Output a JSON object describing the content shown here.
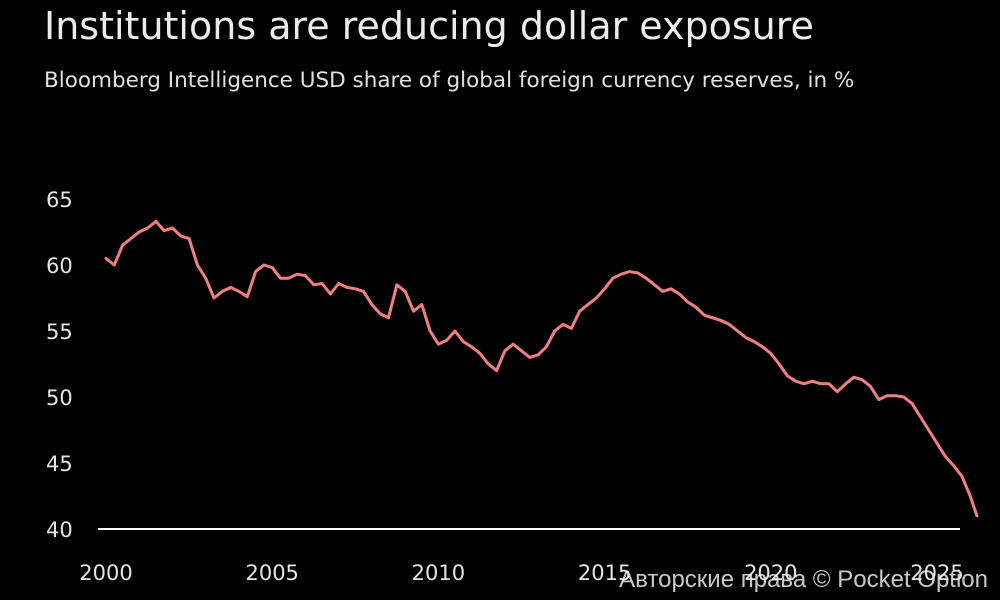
{
  "chart_data": {
    "type": "line",
    "title": "Institutions are reducing dollar exposure",
    "subtitle": "Bloomberg Intelligence USD share of global foreign currency reserves, in %",
    "xlabel": "",
    "ylabel": "",
    "xlim": [
      2000,
      2026.6
    ],
    "ylim": [
      40,
      67
    ],
    "xticks": [
      2000,
      2005,
      2010,
      2015,
      2020,
      2025
    ],
    "yticks": [
      40,
      45,
      50,
      55,
      60,
      65
    ],
    "grid": false,
    "legend": "none",
    "line_color": "#f08080",
    "series": [
      {
        "name": "",
        "x": [
          2000.0,
          2000.25,
          2000.5,
          2000.75,
          2001.0,
          2001.25,
          2001.5,
          2001.75,
          2002.0,
          2002.25,
          2002.5,
          2002.75,
          2003.0,
          2003.25,
          2003.5,
          2003.75,
          2004.0,
          2004.25,
          2004.5,
          2004.75,
          2005.0,
          2005.25,
          2005.5,
          2005.75,
          2006.0,
          2006.25,
          2006.5,
          2006.75,
          2007.0,
          2007.25,
          2007.5,
          2007.75,
          2008.0,
          2008.25,
          2008.5,
          2008.75,
          2009.0,
          2009.25,
          2009.5,
          2009.75,
          2010.0,
          2010.25,
          2010.5,
          2010.75,
          2011.0,
          2011.25,
          2011.5,
          2011.75,
          2012.0,
          2012.25,
          2012.5,
          2012.75,
          2013.0,
          2013.25,
          2013.5,
          2013.75,
          2014.0,
          2014.25,
          2014.5,
          2014.75,
          2015.0,
          2015.25,
          2015.5,
          2015.75,
          2016.0,
          2016.25,
          2016.5,
          2016.75,
          2017.0,
          2017.25,
          2017.5,
          2017.75,
          2018.0,
          2018.25,
          2018.5,
          2018.75,
          2019.0,
          2019.25,
          2019.5,
          2019.75,
          2020.0,
          2020.25,
          2020.5,
          2020.75,
          2021.0,
          2021.25,
          2021.5,
          2021.75,
          2022.0,
          2022.25,
          2022.5,
          2022.75,
          2023.0,
          2023.25,
          2023.5,
          2023.75,
          2024.0,
          2024.25,
          2024.5,
          2024.75,
          2025.0,
          2025.25,
          2025.5,
          2025.75,
          2026.0,
          2026.2
        ],
        "values": [
          60.5,
          60.0,
          61.5,
          62.0,
          62.5,
          62.8,
          63.3,
          62.6,
          62.8,
          62.2,
          62.0,
          60.0,
          59.0,
          57.5,
          58.0,
          58.3,
          58.0,
          57.6,
          59.5,
          60.0,
          59.8,
          59.0,
          59.0,
          59.3,
          59.2,
          58.5,
          58.6,
          57.8,
          58.6,
          58.3,
          58.2,
          58.0,
          57.0,
          56.3,
          56.0,
          58.5,
          58.0,
          56.5,
          57.0,
          55.0,
          54.0,
          54.3,
          55.0,
          54.2,
          53.8,
          53.3,
          52.5,
          52.0,
          53.5,
          54.0,
          53.5,
          53.0,
          53.2,
          53.8,
          55.0,
          55.5,
          55.2,
          56.5,
          57.0,
          57.5,
          58.2,
          59.0,
          59.3,
          59.5,
          59.4,
          59.0,
          58.5,
          58.0,
          58.2,
          57.8,
          57.2,
          56.8,
          56.2,
          56.0,
          55.8,
          55.5,
          55.0,
          54.5,
          54.2,
          53.8,
          53.3,
          52.5,
          51.6,
          51.2,
          51.0,
          51.2,
          51.0,
          51.0,
          50.4,
          51.0,
          51.5,
          51.3,
          50.8,
          49.8,
          50.1,
          50.1,
          50.0,
          49.5,
          48.5,
          47.5,
          46.5,
          45.5,
          44.8,
          44.0,
          42.5,
          41.0
        ]
      }
    ]
  },
  "watermark": "Авторские права © Pocket Option"
}
